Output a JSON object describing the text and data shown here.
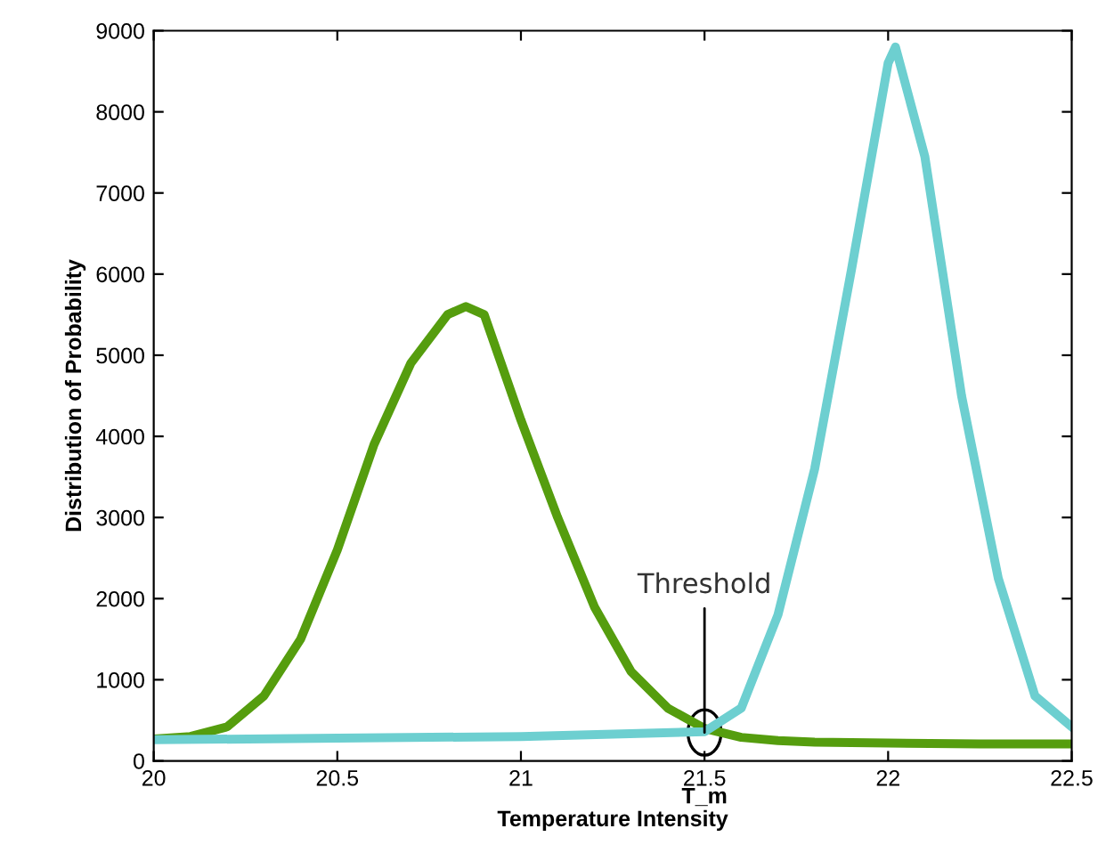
{
  "chart_data": {
    "type": "line",
    "xlabel": "Temperature Intensity",
    "ylabel": "Distribution of Probability",
    "xlim": [
      20,
      22.5
    ],
    "xticks": [
      20,
      20.5,
      21,
      21.5,
      22,
      22.5
    ],
    "ylim": [
      0,
      9000
    ],
    "yticks": [
      0,
      1000,
      2000,
      3000,
      4000,
      5000,
      6000,
      7000,
      8000,
      9000
    ],
    "grid": false,
    "legend": false,
    "line_style": "solid",
    "marker": "none",
    "series": [
      {
        "color": "#559d0e",
        "x": [
          20,
          20.1,
          20.2,
          20.3,
          20.4,
          20.5,
          20.6,
          20.7,
          20.8,
          20.85,
          20.9,
          21,
          21.1,
          21.2,
          21.3,
          21.4,
          21.5,
          21.6,
          21.7,
          21.8,
          22,
          22.25,
          22.5
        ],
        "values": [
          270,
          300,
          420,
          800,
          1500,
          2600,
          3900,
          4900,
          5500,
          5600,
          5500,
          4200,
          3000,
          1900,
          1100,
          650,
          400,
          290,
          250,
          230,
          220,
          210,
          210
        ]
      },
      {
        "color": "#6dcfd0",
        "x": [
          20,
          20.5,
          21,
          21.5,
          21.6,
          21.7,
          21.8,
          21.9,
          22,
          22.02,
          22.1,
          22.2,
          22.3,
          22.4,
          22.5
        ],
        "values": [
          260,
          280,
          300,
          360,
          650,
          1800,
          3600,
          6050,
          8600,
          8800,
          7450,
          4500,
          2250,
          800,
          420
        ]
      }
    ],
    "annotations": [
      {
        "text": "Threshold",
        "x": 21.5,
        "y": 350
      },
      "T_m"
    ]
  }
}
